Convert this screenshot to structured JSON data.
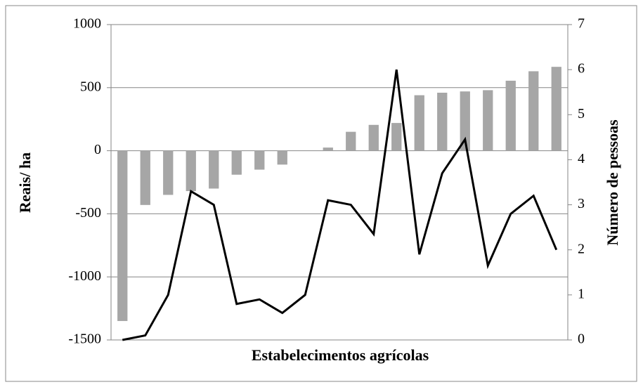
{
  "chart_data": {
    "type": "bar-line",
    "x_label": "Estabelecimentos agrícolas",
    "y_label": "Reais/ ha",
    "y2_label": "Número de pessoas",
    "categories": [
      null,
      null,
      null,
      null,
      null,
      null,
      null,
      null,
      null,
      null,
      null,
      null,
      null,
      null,
      null,
      null,
      null,
      null,
      null,
      null
    ],
    "series": [
      {
        "type": "bar",
        "color": "#a6a6a6",
        "values": [
          -1350,
          -430,
          -350,
          -320,
          -300,
          -190,
          -150,
          -110,
          0,
          25,
          150,
          205,
          220,
          440,
          460,
          470,
          480,
          555,
          630,
          665
        ]
      },
      {
        "type": "line",
        "axis": "y2",
        "color": "#000000",
        "values": [
          0,
          0.1,
          1.0,
          3.3,
          3.0,
          0.8,
          0.9,
          0.6,
          1.0,
          3.1,
          3.0,
          2.35,
          6.0,
          1.9,
          3.7,
          4.45,
          1.65,
          2.8,
          3.2,
          2.0
        ]
      }
    ],
    "ylim": [
      -1500,
      1000
    ],
    "yticks": [
      -1500,
      -1000,
      -500,
      0,
      500,
      1000
    ],
    "y2lim": [
      0,
      7
    ],
    "y2ticks": [
      0,
      1,
      2,
      3,
      4,
      5,
      6,
      7
    ],
    "grid": true
  }
}
